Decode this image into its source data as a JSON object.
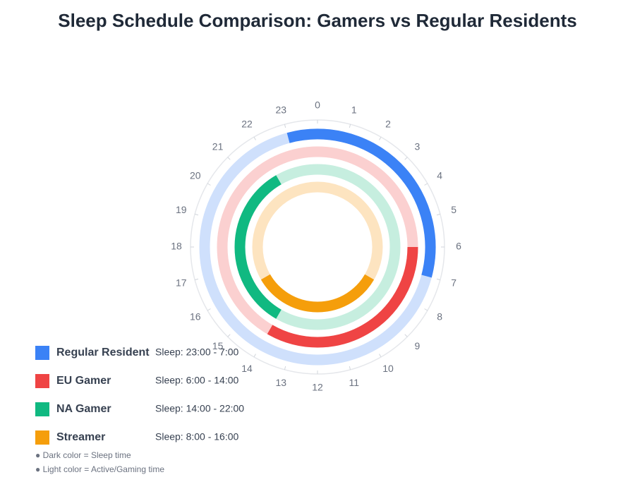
{
  "chart_data": {
    "type": "radial-schedule",
    "title": "Sleep Schedule Comparison: Gamers vs Regular Residents",
    "xlim": [
      0,
      24
    ],
    "xticks": [
      0,
      1,
      2,
      3,
      4,
      5,
      6,
      7,
      8,
      9,
      10,
      11,
      12,
      13,
      14,
      15,
      16,
      17,
      18,
      19,
      20,
      21,
      22,
      23
    ],
    "series": [
      {
        "name": "Regular Resident",
        "color": "#3b82f6",
        "light_color": "#cfe0fc",
        "sleep": [
          23,
          7
        ],
        "sleep_label": "Sleep: 23:00 - 7:00"
      },
      {
        "name": "EU Gamer",
        "color": "#ef4444",
        "light_color": "#fbd0d0",
        "sleep": [
          6,
          14
        ],
        "sleep_label": "Sleep: 6:00 - 14:00"
      },
      {
        "name": "NA Gamer",
        "color": "#10b981",
        "light_color": "#c6eedf",
        "sleep": [
          14,
          22
        ],
        "sleep_label": "Sleep: 14:00 - 22:00"
      },
      {
        "name": "Streamer",
        "color": "#f59e0b",
        "light_color": "#fde4c0",
        "sleep": [
          8,
          16
        ],
        "sleep_label": "Sleep: 8:00 - 16:00"
      }
    ],
    "notes": [
      "● Dark color = Sleep time",
      "● Light color = Active/Gaming time"
    ]
  }
}
